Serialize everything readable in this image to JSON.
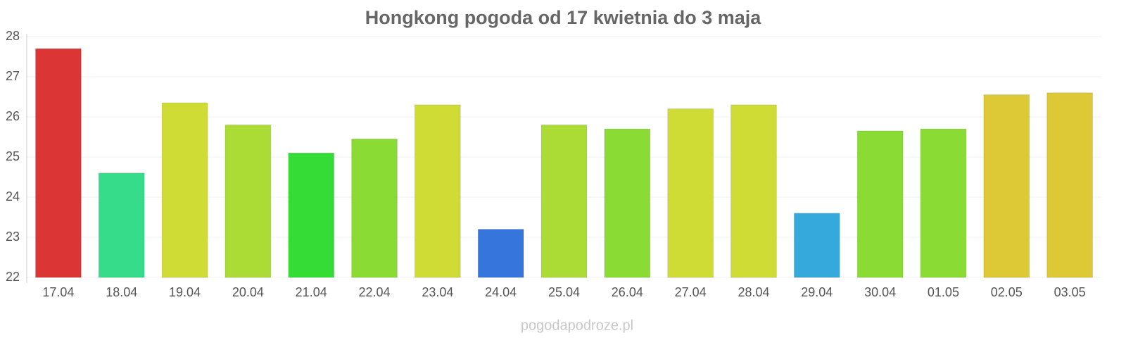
{
  "chart_data": {
    "type": "bar",
    "title": "Hongkong pogoda od 17 kwietnia do 3 maja",
    "categories": [
      "17.04",
      "18.04",
      "19.04",
      "20.04",
      "21.04",
      "22.04",
      "23.04",
      "24.04",
      "25.04",
      "26.04",
      "27.04",
      "28.04",
      "29.04",
      "30.04",
      "01.05",
      "02.05",
      "03.05"
    ],
    "values": [
      27.7,
      24.6,
      26.35,
      25.8,
      25.1,
      25.45,
      26.3,
      23.2,
      25.8,
      25.7,
      26.2,
      26.3,
      23.6,
      25.65,
      25.7,
      26.55,
      26.6
    ],
    "colors": [
      "#dc3535",
      "#36dc8a",
      "#cfdc35",
      "#aadc35",
      "#35dc35",
      "#8adc35",
      "#cfdc35",
      "#3575dc",
      "#aadc35",
      "#8adc35",
      "#cfdc35",
      "#cfdc35",
      "#35a8dc",
      "#8adc35",
      "#8adc35",
      "#dcc935",
      "#dcc935"
    ],
    "ylim": [
      22,
      28
    ],
    "yticks": [
      22,
      23,
      24,
      25,
      26,
      27,
      28
    ],
    "grid": true,
    "source": "pogodapodroze.pl"
  }
}
